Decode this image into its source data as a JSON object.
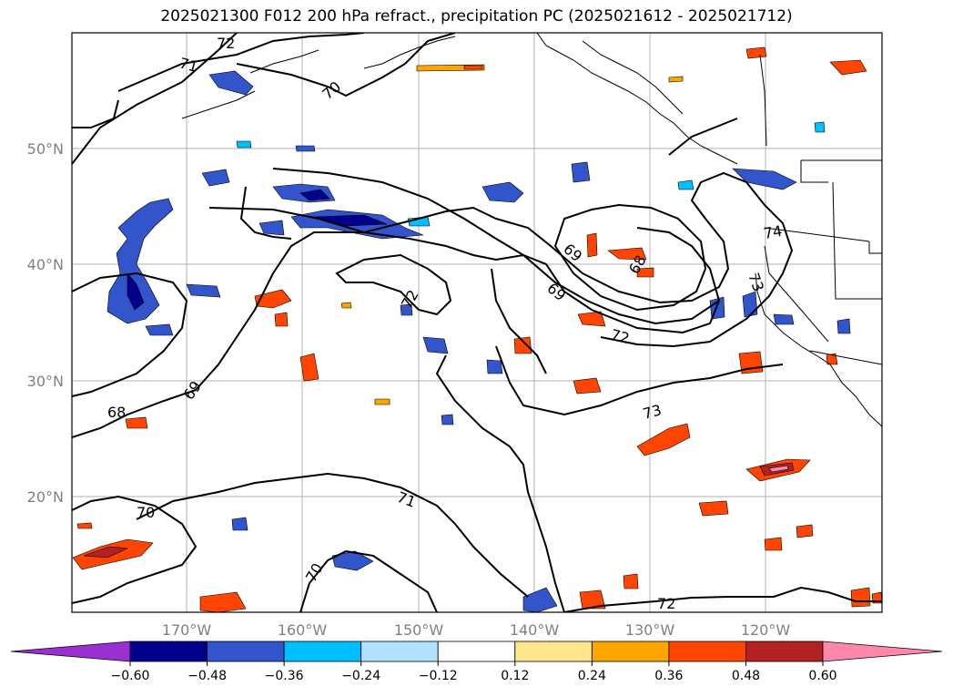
{
  "title": "2025021300 F012 200 hPa refract., precipitation PC (2025021612 - 2025021712)",
  "map": {
    "lat_labels": [
      "50°N",
      "40°N",
      "30°N",
      "20°N"
    ],
    "lon_labels": [
      "170°W",
      "160°W",
      "150°W",
      "140°W",
      "130°W",
      "120°W"
    ],
    "contour_labels": [
      "72",
      "71",
      "70",
      "69",
      "68",
      "70",
      "69",
      "68",
      "74",
      "73",
      "72",
      "71",
      "70",
      "72",
      "69",
      "73",
      "72"
    ]
  },
  "colorbar": {
    "ticks": [
      "−0.60",
      "−0.48",
      "−0.36",
      "−0.24",
      "−0.12",
      "0.12",
      "0.24",
      "0.36",
      "0.48",
      "0.60"
    ],
    "colors": [
      "#9b30d0",
      "#00008b",
      "#3355cc",
      "#00bfff",
      "#b0e2ff",
      "#ffffff",
      "#ffe68a",
      "#ffa500",
      "#ff4500",
      "#b22222",
      "#ff88aa"
    ]
  }
}
